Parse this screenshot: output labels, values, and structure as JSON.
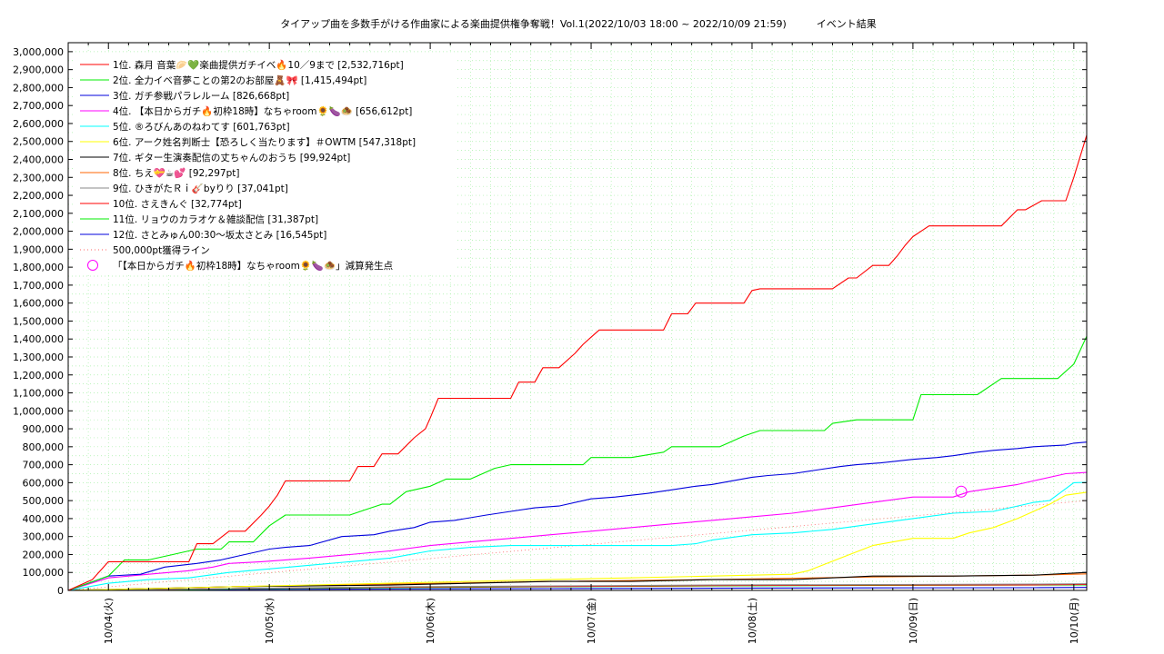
{
  "chart_data": {
    "type": "line",
    "title": "タイアップ曲を多数手がける作曲家による楽曲提供権争奪戦！Vol.1(2022/10/03 18:00 ~ 2022/10/09 21:59)　　　イベント結果",
    "ylim": [
      0,
      3050000
    ],
    "xlim": [
      0,
      6.33
    ],
    "grid": true,
    "legend_position": "top-left",
    "y_ticks": [
      {
        "value": 0,
        "label": "0"
      },
      {
        "value": 100000,
        "label": "100,000"
      },
      {
        "value": 200000,
        "label": "200,000"
      },
      {
        "value": 300000,
        "label": "300,000"
      },
      {
        "value": 400000,
        "label": "400,000"
      },
      {
        "value": 500000,
        "label": "500,000"
      },
      {
        "value": 600000,
        "label": "600,000"
      },
      {
        "value": 700000,
        "label": "700,000"
      },
      {
        "value": 800000,
        "label": "800,000"
      },
      {
        "value": 900000,
        "label": "900,000"
      },
      {
        "value": 1000000,
        "label": "1,000,000"
      },
      {
        "value": 1100000,
        "label": "1,100,000"
      },
      {
        "value": 1200000,
        "label": "1,200,000"
      },
      {
        "value": 1300000,
        "label": "1,300,000"
      },
      {
        "value": 1400000,
        "label": "1,400,000"
      },
      {
        "value": 1500000,
        "label": "1,500,000"
      },
      {
        "value": 1600000,
        "label": "1,600,000"
      },
      {
        "value": 1700000,
        "label": "1,700,000"
      },
      {
        "value": 1800000,
        "label": "1,800,000"
      },
      {
        "value": 1900000,
        "label": "1,900,000"
      },
      {
        "value": 2000000,
        "label": "2,000,000"
      },
      {
        "value": 2100000,
        "label": "2,100,000"
      },
      {
        "value": 2200000,
        "label": "2,200,000"
      },
      {
        "value": 2300000,
        "label": "2,300,000"
      },
      {
        "value": 2400000,
        "label": "2,400,000"
      },
      {
        "value": 2500000,
        "label": "2,500,000"
      },
      {
        "value": 2600000,
        "label": "2,600,000"
      },
      {
        "value": 2700000,
        "label": "2,700,000"
      },
      {
        "value": 2800000,
        "label": "2,800,000"
      },
      {
        "value": 2900000,
        "label": "2,900,000"
      },
      {
        "value": 3000000,
        "label": "3,000,000"
      }
    ],
    "x_ticks": [
      {
        "value": 0.25,
        "label": "10/04(火)"
      },
      {
        "value": 1.25,
        "label": "10/05(水)"
      },
      {
        "value": 2.25,
        "label": "10/06(木)"
      },
      {
        "value": 3.25,
        "label": "10/07(金)"
      },
      {
        "value": 4.25,
        "label": "10/08(土)"
      },
      {
        "value": 5.25,
        "label": "10/09(日)"
      },
      {
        "value": 6.25,
        "label": "10/10(月)"
      }
    ],
    "series": [
      {
        "name": "1位. 森月 音葉🥟💚楽曲提供ガチイベ🔥10／9まで [2,532,716pt]",
        "color": "#ff0000",
        "x": [
          0,
          0.15,
          0.25,
          0.45,
          0.55,
          0.75,
          0.8,
          0.9,
          1.0,
          1.1,
          1.2,
          1.25,
          1.3,
          1.35,
          1.5,
          1.75,
          1.8,
          1.9,
          1.95,
          2.05,
          2.15,
          2.22,
          2.25,
          2.3,
          2.5,
          2.75,
          2.8,
          2.9,
          2.95,
          3.05,
          3.15,
          3.2,
          3.25,
          3.3,
          3.5,
          3.7,
          3.75,
          3.85,
          3.9,
          4.05,
          4.2,
          4.25,
          4.3,
          4.5,
          4.7,
          4.75,
          4.85,
          4.9,
          5.0,
          5.1,
          5.15,
          5.2,
          5.25,
          5.35,
          5.55,
          5.75,
          5.8,
          5.9,
          5.95,
          6.05,
          6.15,
          6.2,
          6.25,
          6.33
        ],
        "y": [
          0,
          60000,
          160000,
          160000,
          160000,
          160000,
          260000,
          260000,
          330000,
          330000,
          420000,
          470000,
          530000,
          610000,
          610000,
          610000,
          690000,
          690000,
          760000,
          760000,
          850000,
          900000,
          960000,
          1070000,
          1070000,
          1070000,
          1160000,
          1160000,
          1240000,
          1240000,
          1320000,
          1370000,
          1410000,
          1450000,
          1450000,
          1450000,
          1540000,
          1540000,
          1600000,
          1600000,
          1600000,
          1670000,
          1680000,
          1680000,
          1680000,
          1680000,
          1740000,
          1740000,
          1810000,
          1810000,
          1860000,
          1920000,
          1970000,
          2030000,
          2030000,
          2030000,
          2030000,
          2120000,
          2120000,
          2170000,
          2170000,
          2170000,
          2300000,
          2535000
        ]
      },
      {
        "name": "2位. 全力イベ音夢ことの第2のお部屋🧸🎀 [1,415,494pt]",
        "color": "#00ee00",
        "x": [
          0,
          0.25,
          0.35,
          0.5,
          0.65,
          0.8,
          0.95,
          1.0,
          1.15,
          1.25,
          1.35,
          1.5,
          1.75,
          1.85,
          1.95,
          2.0,
          2.1,
          2.25,
          2.35,
          2.5,
          2.65,
          2.75,
          2.9,
          3.05,
          3.2,
          3.25,
          3.35,
          3.5,
          3.7,
          3.75,
          3.9,
          4.05,
          4.1,
          4.2,
          4.3,
          4.5,
          4.7,
          4.75,
          4.9,
          5.0,
          5.2,
          5.25,
          5.3,
          5.45,
          5.55,
          5.65,
          5.8,
          5.95,
          6.05,
          6.15,
          6.25,
          6.33
        ],
        "y": [
          0,
          80000,
          170000,
          170000,
          200000,
          230000,
          230000,
          270000,
          270000,
          360000,
          420000,
          420000,
          420000,
          450000,
          480000,
          480000,
          550000,
          580000,
          620000,
          620000,
          680000,
          700000,
          700000,
          700000,
          700000,
          740000,
          740000,
          740000,
          770000,
          800000,
          800000,
          800000,
          820000,
          860000,
          890000,
          890000,
          890000,
          930000,
          950000,
          950000,
          950000,
          950000,
          1090000,
          1090000,
          1090000,
          1090000,
          1180000,
          1180000,
          1180000,
          1180000,
          1260000,
          1415000
        ]
      },
      {
        "name": "3位. ガチ参戦パラレルーム [826,668pt]",
        "color": "#0000dd",
        "x": [
          0,
          0.25,
          0.45,
          0.6,
          0.8,
          0.95,
          1.05,
          1.2,
          1.25,
          1.35,
          1.5,
          1.7,
          1.9,
          2.0,
          2.15,
          2.25,
          2.4,
          2.6,
          2.75,
          2.9,
          3.05,
          3.25,
          3.4,
          3.6,
          3.75,
          3.9,
          4.0,
          4.25,
          4.35,
          4.5,
          4.65,
          4.8,
          4.9,
          5.05,
          5.25,
          5.4,
          5.5,
          5.65,
          5.75,
          5.9,
          6.0,
          6.2,
          6.25,
          6.33
        ],
        "y": [
          0,
          80000,
          90000,
          130000,
          150000,
          170000,
          190000,
          220000,
          230000,
          240000,
          250000,
          300000,
          310000,
          330000,
          350000,
          380000,
          390000,
          420000,
          440000,
          460000,
          470000,
          510000,
          520000,
          540000,
          560000,
          580000,
          590000,
          630000,
          640000,
          650000,
          670000,
          690000,
          700000,
          710000,
          730000,
          740000,
          750000,
          770000,
          780000,
          790000,
          800000,
          810000,
          820000,
          826000
        ]
      },
      {
        "name": "4位. 【本日からガチ🔥初枠18時】なちゃroom🌻🍆🧆 [656,612pt]",
        "color": "#ff00ff",
        "x": [
          0,
          0.25,
          0.5,
          0.75,
          0.9,
          1.0,
          1.2,
          1.35,
          1.5,
          1.75,
          2.0,
          2.25,
          2.5,
          2.75,
          3.0,
          3.25,
          3.5,
          3.75,
          4.0,
          4.25,
          4.5,
          4.75,
          5.0,
          5.25,
          5.5,
          5.6,
          5.75,
          5.9,
          6.0,
          6.2,
          6.33
        ],
        "y": [
          0,
          70000,
          90000,
          110000,
          130000,
          150000,
          160000,
          170000,
          180000,
          200000,
          220000,
          250000,
          270000,
          290000,
          310000,
          330000,
          350000,
          370000,
          390000,
          410000,
          430000,
          460000,
          490000,
          520000,
          520000,
          550000,
          570000,
          590000,
          610000,
          650000,
          657000
        ]
      },
      {
        "name": "5位. ®ろびんあのねわてす [601,763pt]",
        "color": "#00ffff",
        "x": [
          0,
          0.25,
          0.5,
          0.75,
          1.0,
          1.25,
          1.5,
          1.75,
          2.0,
          2.25,
          2.5,
          2.75,
          3.0,
          3.25,
          3.5,
          3.75,
          3.9,
          4.0,
          4.25,
          4.5,
          4.75,
          5.0,
          5.25,
          5.5,
          5.75,
          5.9,
          6.0,
          6.1,
          6.25,
          6.33
        ],
        "y": [
          0,
          40000,
          60000,
          70000,
          100000,
          120000,
          140000,
          160000,
          180000,
          220000,
          240000,
          250000,
          250000,
          250000,
          250000,
          250000,
          260000,
          280000,
          310000,
          320000,
          340000,
          370000,
          400000,
          430000,
          440000,
          470000,
          490000,
          500000,
          600000,
          602000
        ]
      },
      {
        "name": "6位. アーク姓名判断士【恐ろしく当たります】＃OWTM [547,318pt]",
        "color": "#ffff00",
        "x": [
          0,
          1.0,
          2.0,
          3.0,
          4.0,
          4.5,
          4.6,
          4.8,
          5.0,
          5.25,
          5.5,
          5.6,
          5.75,
          5.9,
          6.0,
          6.1,
          6.2,
          6.33
        ],
        "y": [
          0,
          20000,
          40000,
          60000,
          80000,
          90000,
          110000,
          180000,
          250000,
          290000,
          290000,
          320000,
          350000,
          400000,
          440000,
          480000,
          530000,
          547000
        ]
      },
      {
        "name": "7位. ギター生演奏配信の丈ちゃんのおうち [99,924pt]",
        "color": "#000000",
        "x": [
          0,
          1.0,
          2.0,
          3.0,
          3.5,
          4.0,
          4.5,
          5.0,
          5.5,
          6.0,
          6.33
        ],
        "y": [
          0,
          20000,
          30000,
          50000,
          50000,
          60000,
          60000,
          80000,
          80000,
          85000,
          100000
        ]
      },
      {
        "name": "8位. ちえ💝☕💕 [92,297pt]",
        "color": "#ff6600",
        "x": [
          0,
          1.0,
          2.0,
          3.0,
          4.0,
          5.0,
          6.0,
          6.33
        ],
        "y": [
          0,
          20000,
          35000,
          50000,
          60000,
          75000,
          85000,
          92000
        ]
      },
      {
        "name": "9位. ひきがたＲｉ🎸byりり [37,041pt]",
        "color": "#888888",
        "x": [
          0,
          1.0,
          2.0,
          3.0,
          4.0,
          5.0,
          6.0,
          6.33
        ],
        "y": [
          0,
          10000,
          20000,
          25000,
          30000,
          33000,
          35000,
          37000
        ]
      },
      {
        "name": "10位. さえきんぐ [32,774pt]",
        "color": "#ff0000",
        "x": [
          0,
          1.0,
          2.0,
          3.0,
          4.0,
          5.0,
          6.0,
          6.33
        ],
        "y": [
          0,
          10000,
          18000,
          22000,
          27000,
          30000,
          31000,
          33000
        ]
      },
      {
        "name": "11位. リョウのカラオケ＆雑談配信 [31,387pt]",
        "color": "#00ee00",
        "x": [
          0,
          1.0,
          2.0,
          3.0,
          4.0,
          5.0,
          6.0,
          6.33
        ],
        "y": [
          0,
          8000,
          15000,
          20000,
          25000,
          28000,
          30000,
          31000
        ]
      },
      {
        "name": "12位. さとみゅん00:30〜坂太さとみ [16,545pt]",
        "color": "#0000dd",
        "x": [
          0,
          1.0,
          2.0,
          3.0,
          4.0,
          5.0,
          6.0,
          6.33
        ],
        "y": [
          0,
          5000,
          8000,
          10000,
          12000,
          14000,
          15000,
          16500
        ]
      }
    ],
    "reference_line": {
      "name": "500,000pt獲得ライン",
      "color": "#ff6666",
      "x": [
        0,
        6.33
      ],
      "y": [
        0,
        500000
      ]
    },
    "marker": {
      "name": "「【本日からガチ🔥初枠18時】なちゃroom🌻🍆🧆」減算発生点",
      "color": "#ff00ff",
      "x": 5.55,
      "y": 550000
    }
  }
}
